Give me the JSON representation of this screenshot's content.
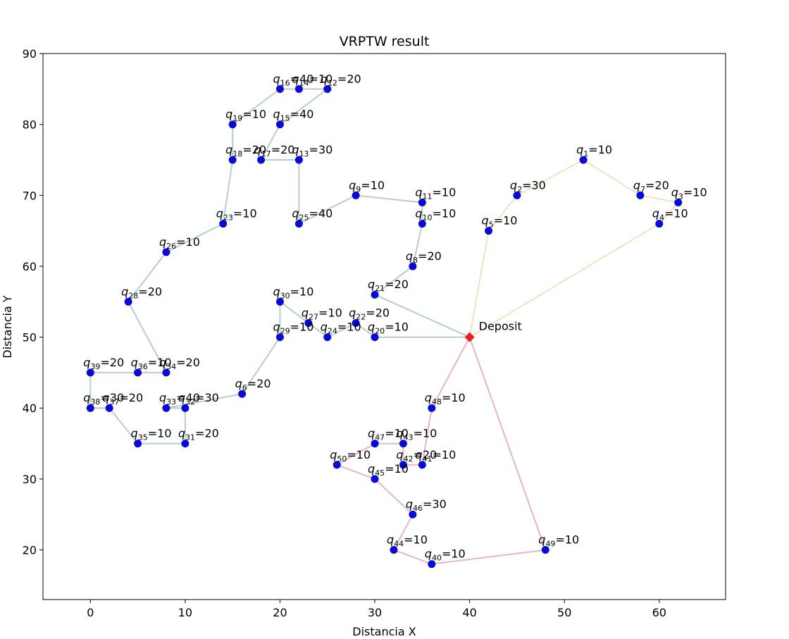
{
  "chart_data": {
    "type": "scatter",
    "title": "VRPTW result",
    "xlabel": "Distancia X",
    "ylabel": "Distancia Y",
    "xlim": [
      -5,
      67
    ],
    "ylim": [
      13,
      90
    ],
    "xticks": [
      0,
      10,
      20,
      30,
      40,
      50,
      60
    ],
    "yticks": [
      20,
      30,
      40,
      50,
      60,
      70,
      80,
      90
    ],
    "grid": false,
    "depot": {
      "label": "Deposit",
      "x": 40,
      "y": 50,
      "color": "#e8231f"
    },
    "point_color": "#0a0ad8",
    "points": [
      {
        "id": "1",
        "x": 52,
        "y": 75,
        "q": 10
      },
      {
        "id": "2",
        "x": 45,
        "y": 70,
        "q": 30
      },
      {
        "id": "3",
        "x": 62,
        "y": 69,
        "q": 10
      },
      {
        "id": "4",
        "x": 60,
        "y": 66,
        "q": 10
      },
      {
        "id": "5",
        "x": 42,
        "y": 65,
        "q": 10
      },
      {
        "id": "6",
        "x": 16,
        "y": 42,
        "q": 20
      },
      {
        "id": "7",
        "x": 58,
        "y": 70,
        "q": 20
      },
      {
        "id": "8",
        "x": 34,
        "y": 60,
        "q": 20
      },
      {
        "id": "9",
        "x": 28,
        "y": 70,
        "q": 10
      },
      {
        "id": "10",
        "x": 35,
        "y": 66,
        "q": 10
      },
      {
        "id": "11",
        "x": 35,
        "y": 69,
        "q": 10
      },
      {
        "id": "12",
        "x": 25,
        "y": 85,
        "q": 20
      },
      {
        "id": "13",
        "x": 22,
        "y": 75,
        "q": 30
      },
      {
        "id": "14",
        "x": 22,
        "y": 85,
        "q": 10
      },
      {
        "id": "15",
        "x": 20,
        "y": 80,
        "q": 40
      },
      {
        "id": "16",
        "x": 20,
        "y": 85,
        "q": 40
      },
      {
        "id": "17",
        "x": 18,
        "y": 75,
        "q": 20
      },
      {
        "id": "18",
        "x": 15,
        "y": 75,
        "q": 20
      },
      {
        "id": "19",
        "x": 15,
        "y": 80,
        "q": 10
      },
      {
        "id": "20",
        "x": 30,
        "y": 50,
        "q": 10
      },
      {
        "id": "21",
        "x": 30,
        "y": 56,
        "q": 20
      },
      {
        "id": "22",
        "x": 28,
        "y": 52,
        "q": 20
      },
      {
        "id": "23",
        "x": 14,
        "y": 66,
        "q": 10
      },
      {
        "id": "24",
        "x": 25,
        "y": 50,
        "q": 10
      },
      {
        "id": "25",
        "x": 22,
        "y": 66,
        "q": 40
      },
      {
        "id": "26",
        "x": 8,
        "y": 62,
        "q": 10
      },
      {
        "id": "27",
        "x": 23,
        "y": 52,
        "q": 10
      },
      {
        "id": "28",
        "x": 4,
        "y": 55,
        "q": 20
      },
      {
        "id": "29",
        "x": 20,
        "y": 50,
        "q": 10
      },
      {
        "id": "30",
        "x": 20,
        "y": 55,
        "q": 10
      },
      {
        "id": "31",
        "x": 10,
        "y": 35,
        "q": 20
      },
      {
        "id": "32",
        "x": 10,
        "y": 40,
        "q": 30
      },
      {
        "id": "33",
        "x": 8,
        "y": 40,
        "q": 40
      },
      {
        "id": "34",
        "x": 8,
        "y": 45,
        "q": 20
      },
      {
        "id": "35",
        "x": 5,
        "y": 35,
        "q": 10
      },
      {
        "id": "36",
        "x": 5,
        "y": 45,
        "q": 10
      },
      {
        "id": "37",
        "x": 2,
        "y": 40,
        "q": 20
      },
      {
        "id": "38",
        "x": 0,
        "y": 40,
        "q": 30
      },
      {
        "id": "39",
        "x": 0,
        "y": 45,
        "q": 20
      },
      {
        "id": "40",
        "x": 36,
        "y": 18,
        "q": 10
      },
      {
        "id": "41",
        "x": 35,
        "y": 32,
        "q": 10
      },
      {
        "id": "42",
        "x": 33,
        "y": 32,
        "q": 20
      },
      {
        "id": "43",
        "x": 33,
        "y": 35,
        "q": 10
      },
      {
        "id": "44",
        "x": 32,
        "y": 20,
        "q": 10
      },
      {
        "id": "45",
        "x": 30,
        "y": 30,
        "q": 10
      },
      {
        "id": "46",
        "x": 34,
        "y": 25,
        "q": 30
      },
      {
        "id": "47",
        "x": 30,
        "y": 35,
        "q": 10
      },
      {
        "id": "48",
        "x": 36,
        "y": 40,
        "q": 10
      },
      {
        "id": "49",
        "x": 48,
        "y": 20,
        "q": 10
      },
      {
        "id": "50",
        "x": 26,
        "y": 32,
        "q": 10
      }
    ],
    "routes": [
      {
        "color": "#f0e2c2",
        "stops": [
          "D",
          "5",
          "2",
          "1",
          "7",
          "3",
          "4",
          "D"
        ]
      },
      {
        "color": "#b7cfc9",
        "stops": [
          "D",
          "21",
          "8",
          "10",
          "11",
          "9",
          "25",
          "13",
          "17",
          "15",
          "12",
          "14",
          "16",
          "19",
          "18",
          "23",
          "26",
          "28",
          "34",
          "36",
          "39",
          "38",
          "37",
          "35",
          "31",
          "32",
          "33",
          "6",
          "29",
          "30",
          "27",
          "24",
          "22",
          "20",
          "D"
        ]
      },
      {
        "color": "#e6b5c6",
        "stops": [
          "D",
          "48",
          "41",
          "42",
          "43",
          "47",
          "50",
          "45",
          "46",
          "44",
          "40",
          "49",
          "D"
        ]
      }
    ]
  }
}
